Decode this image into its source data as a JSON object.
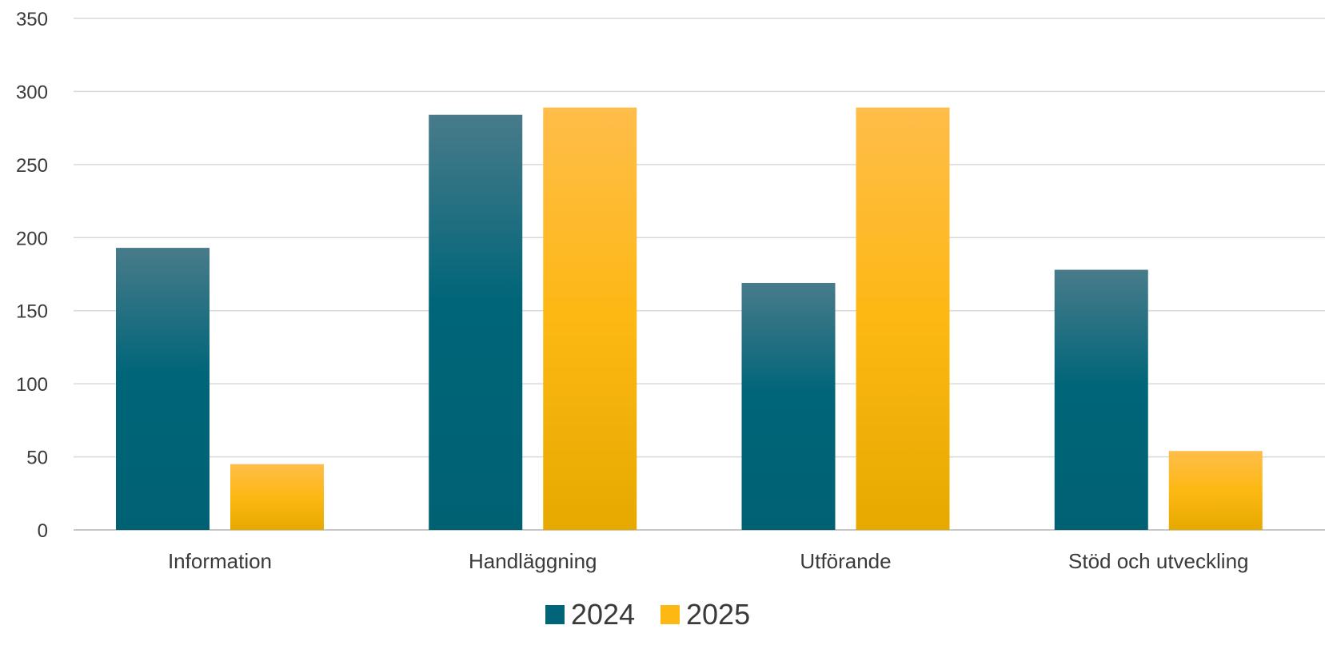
{
  "chart_data": {
    "type": "bar",
    "categories": [
      "Information",
      "Handläggning",
      "Utförande",
      "Stöd och utveckling"
    ],
    "series": [
      {
        "name": "2024",
        "values": [
          193,
          284,
          169,
          178
        ],
        "color": "#006579"
      },
      {
        "name": "2025",
        "values": [
          45,
          289,
          289,
          54
        ],
        "color": "#FDB813"
      }
    ],
    "yticks": [
      0,
      50,
      100,
      150,
      200,
      250,
      300,
      350
    ],
    "ylim": [
      0,
      350
    ],
    "grid": true,
    "legend_position": "bottom-center",
    "title": "",
    "xlabel": "",
    "ylabel": ""
  }
}
